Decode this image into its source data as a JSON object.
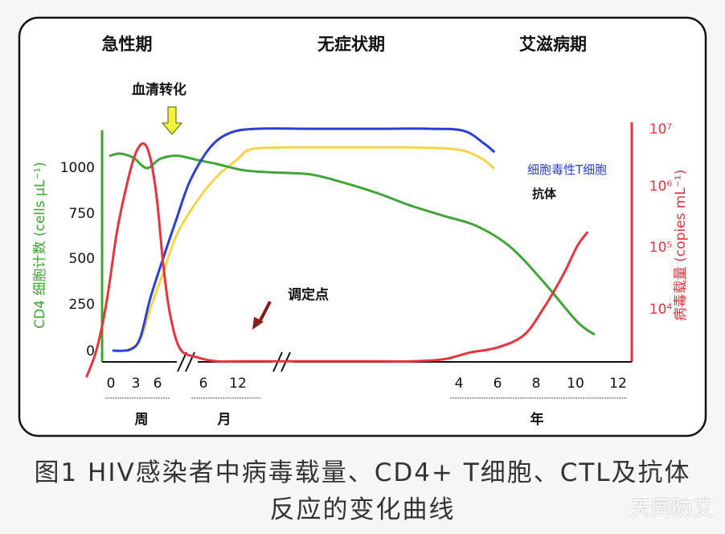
{
  "chart_data": {
    "type": "line",
    "phases": [
      "急性期",
      "无症状期",
      "艾滋病期"
    ],
    "left_axis": {
      "label": "CD4 细胞计数 (cells μL⁻¹)",
      "ticks": [
        0,
        250,
        500,
        750,
        1000
      ],
      "range": [
        0,
        1150
      ],
      "color": "#3fa535"
    },
    "right_axis": {
      "label": "病毒载量 (copies mL⁻¹)",
      "ticks": [
        "10⁴",
        "10⁵",
        "10⁶",
        "10⁷"
      ],
      "tick_values": [
        4,
        5,
        6,
        7
      ],
      "range": [
        3.5,
        7.2
      ],
      "scale": "log",
      "color": "#e8323c"
    },
    "x_axis": {
      "segments": [
        {
          "unit": "周",
          "ticks": [
            "0",
            "3",
            "6"
          ]
        },
        {
          "unit": "月",
          "ticks": [
            "6",
            "12"
          ]
        },
        {
          "unit": "年",
          "ticks": [
            "4",
            "6",
            "8",
            "10",
            "12"
          ]
        }
      ]
    },
    "annotations": [
      {
        "text": "血清转化",
        "arrow_color": "#f4f13a"
      },
      {
        "text": "调定点",
        "arrow_color": "#8b1a1a"
      }
    ],
    "series": [
      {
        "name": "CD4",
        "color": "#3fa535",
        "axis": "left",
        "points": [
          [
            0.0,
            940
          ],
          [
            0.15,
            950
          ],
          [
            0.35,
            930
          ],
          [
            0.55,
            880
          ],
          [
            0.75,
            925
          ],
          [
            1.0,
            940
          ],
          [
            1.3,
            920
          ],
          [
            1.6,
            900
          ],
          [
            2.0,
            870
          ],
          [
            2.4,
            860
          ],
          [
            3.0,
            850
          ],
          [
            3.5,
            810
          ],
          [
            4.0,
            760
          ],
          [
            4.5,
            700
          ],
          [
            5.0,
            650
          ],
          [
            5.5,
            600
          ],
          [
            6.0,
            500
          ],
          [
            6.5,
            330
          ],
          [
            7.0,
            140
          ],
          [
            7.25,
            80
          ]
        ]
      },
      {
        "name": "细胞毒性T细胞",
        "color": "#2b3fd6",
        "axis": "left",
        "points": [
          [
            0.05,
            0
          ],
          [
            0.3,
            5
          ],
          [
            0.45,
            60
          ],
          [
            0.6,
            250
          ],
          [
            0.8,
            450
          ],
          [
            1.0,
            640
          ],
          [
            1.2,
            820
          ],
          [
            1.5,
            980
          ],
          [
            1.8,
            1050
          ],
          [
            2.2,
            1070
          ],
          [
            3.0,
            1070
          ],
          [
            4.0,
            1070
          ],
          [
            4.8,
            1070
          ],
          [
            5.3,
            1060
          ],
          [
            5.6,
            1000
          ],
          [
            5.75,
            960
          ]
        ]
      },
      {
        "name": "抗体",
        "color": "#f7d445",
        "axis": "left",
        "points": [
          [
            0.25,
            0
          ],
          [
            0.45,
            50
          ],
          [
            0.6,
            200
          ],
          [
            0.8,
            380
          ],
          [
            1.0,
            560
          ],
          [
            1.3,
            720
          ],
          [
            1.6,
            840
          ],
          [
            1.9,
            920
          ],
          [
            2.1,
            970
          ],
          [
            2.6,
            980
          ],
          [
            3.5,
            980
          ],
          [
            4.5,
            980
          ],
          [
            5.2,
            970
          ],
          [
            5.55,
            930
          ],
          [
            5.75,
            880
          ]
        ]
      },
      {
        "name": "病毒载量",
        "color": "#e8323c",
        "axis": "right",
        "points": [
          [
            -0.35,
            3.5
          ],
          [
            -0.2,
            3.9
          ],
          [
            -0.05,
            4.6
          ],
          [
            0.1,
            5.6
          ],
          [
            0.25,
            6.3
          ],
          [
            0.38,
            6.75
          ],
          [
            0.5,
            6.9
          ],
          [
            0.6,
            6.7
          ],
          [
            0.7,
            6.1
          ],
          [
            0.8,
            5.1
          ],
          [
            0.9,
            4.4
          ],
          [
            1.05,
            3.9
          ],
          [
            1.3,
            3.78
          ],
          [
            1.6,
            3.72
          ],
          [
            2.0,
            3.72
          ],
          [
            3.0,
            3.72
          ],
          [
            4.0,
            3.72
          ],
          [
            4.5,
            3.72
          ],
          [
            5.0,
            3.75
          ],
          [
            5.4,
            3.85
          ],
          [
            5.8,
            3.92
          ],
          [
            6.2,
            4.1
          ],
          [
            6.5,
            4.5
          ],
          [
            6.8,
            5.0
          ],
          [
            7.0,
            5.4
          ],
          [
            7.15,
            5.6
          ]
        ]
      }
    ]
  },
  "caption": {
    "line1": "图1 HIV感染者中病毒载量、CD4+ T细胞、CTL及抗体",
    "line2": "反应的变化曲线"
  },
  "watermark": "天同防艾"
}
